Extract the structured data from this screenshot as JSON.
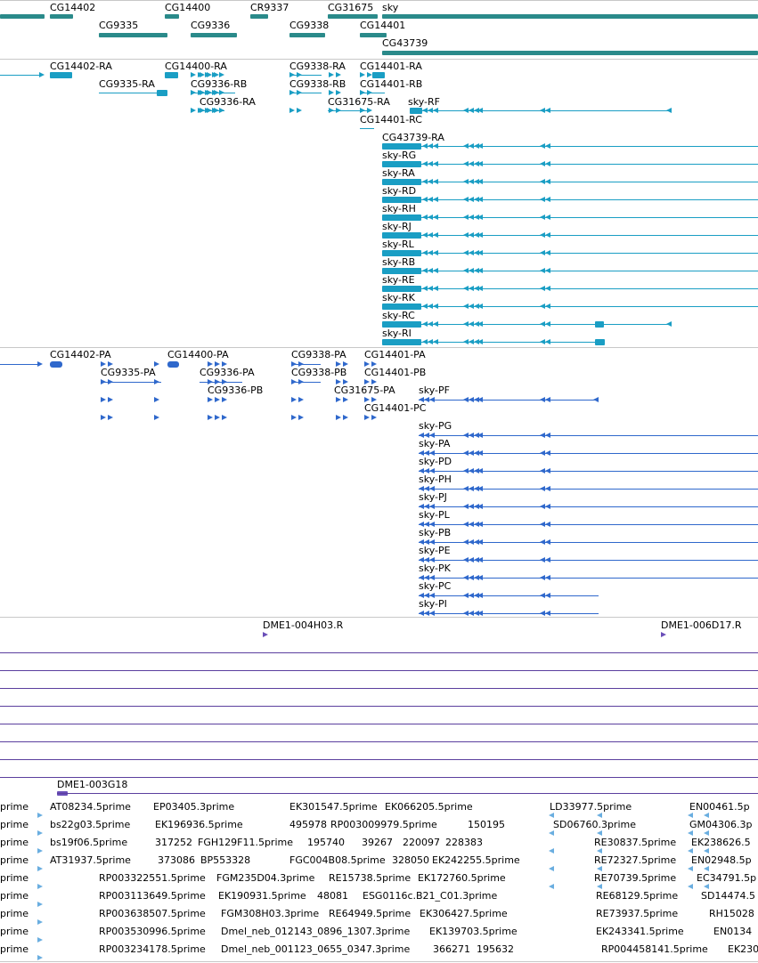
{
  "colors": {
    "gene": "#2a8a8a",
    "transcript": "#1a9ec4",
    "protein": "#2f68cc",
    "probe": "#6a4fb8",
    "est": "#6aaee0"
  },
  "genes": {
    "cg14402": "CG14402",
    "cg14400": "CG14400",
    "cr9337": "CR9337",
    "cg31675": "CG31675",
    "sky": "sky",
    "cg9335": "CG9335",
    "cg9336": "CG9336",
    "cg9338": "CG9338",
    "cg14401": "CG14401",
    "cg43739": "CG43739"
  },
  "transcripts": {
    "cg14402_ra": "CG14402-RA",
    "cg14400_ra": "CG14400-RA",
    "cg9338_ra": "CG9338-RA",
    "cg14401_ra": "CG14401-RA",
    "cg9335_ra": "CG9335-RA",
    "cg9336_rb": "CG9336-RB",
    "cg9338_rb": "CG9338-RB",
    "cg14401_rb": "CG14401-RB",
    "cg9336_ra": "CG9336-RA",
    "cg31675_ra": "CG31675-RA",
    "sky_rf": "sky-RF",
    "cg14401_rc": "CG14401-RC",
    "cg43739_ra": "CG43739-RA",
    "sky_rg": "sky-RG",
    "sky_ra": "sky-RA",
    "sky_rd": "sky-RD",
    "sky_rh": "sky-RH",
    "sky_rj": "sky-RJ",
    "sky_rl": "sky-RL",
    "sky_rb": "sky-RB",
    "sky_re": "sky-RE",
    "sky_rk": "sky-RK",
    "sky_rc": "sky-RC",
    "sky_ri": "sky-RI"
  },
  "proteins": {
    "cg14402_pa": "CG14402-PA",
    "cg14400_pa": "CG14400-PA",
    "cg9338_pa": "CG9338-PA",
    "cg14401_pa": "CG14401-PA",
    "cg9335_pa": "CG9335-PA",
    "cg9336_pa": "CG9336-PA",
    "cg9338_pb": "CG9338-PB",
    "cg14401_pb": "CG14401-PB",
    "cg9336_pb": "CG9336-PB",
    "cg31675_pa": "CG31675-PA",
    "sky_pf": "sky-PF",
    "cg14401_pc": "CG14401-PC",
    "sky_pg": "sky-PG",
    "sky_pa": "sky-PA",
    "sky_pd": "sky-PD",
    "sky_ph": "sky-PH",
    "sky_pj": "sky-PJ",
    "sky_pl": "sky-PL",
    "sky_pb": "sky-PB",
    "sky_pe": "sky-PE",
    "sky_pk": "sky-PK",
    "sky_pc": "sky-PC",
    "sky_pi": "sky-PI"
  },
  "probes": {
    "p1": "DME1-004H03.R",
    "p2": "DME1-006D17.R",
    "p3": "DME1-003G18"
  },
  "ests": {
    "r1": [
      "prime",
      "AT08234.5prime",
      "EP03405.3prime",
      "EK301547.5prime",
      "EK066205.5prime",
      "LD33977.5prime",
      "EN00461.5p"
    ],
    "r2": [
      "prime",
      "bs22g03.5prime",
      "EK196936.5prime",
      "495978",
      "RP003009979.5prime",
      "150195",
      "SD06760.3prime",
      "GM04306.3p"
    ],
    "r3": [
      "prime",
      "bs19f06.5prime",
      "317252",
      "FGH129F11.5prime",
      "195740",
      "39267",
      "220097",
      "228383",
      "RE30837.5prime",
      "EK238626.5"
    ],
    "r4": [
      "prime",
      "AT31937.5prime",
      "373086",
      "BP553328",
      "FGC004B08.5prime",
      "328050",
      "EK242255.5prime",
      "RE72327.5prime",
      "EN02948.5p"
    ],
    "r5": [
      "prime",
      "RP003322551.5prime",
      "FGM235D04.3prime",
      "RE15738.5prime",
      "EK172760.5prime",
      "RE70739.5prime",
      "EC34791.5p"
    ],
    "r6": [
      "prime",
      "RP003113649.5prime",
      "EK190931.5prime",
      "48081",
      "ESG0116c.B21_C01.3prime",
      "RE68129.5prime",
      "SD14474.5"
    ],
    "r7": [
      "prime",
      "RP003638507.5prime",
      "FGM308H03.3prime",
      "RE64949.5prime",
      "EK306427.5prime",
      "RE73937.5prime",
      "RH15028"
    ],
    "r8": [
      "prime",
      "RP003530996.5prime",
      "Dmel_neb_012143_0896_1307.3prime",
      "EK139703.5prime",
      "EK243341.5prime",
      "EN0134"
    ],
    "r9": [
      "prime",
      "RP003234178.5prime",
      "Dmel_neb_001123_0655_0347.3prime",
      "366271",
      "195632",
      "RP004458141.5prime",
      "EK230"
    ]
  }
}
